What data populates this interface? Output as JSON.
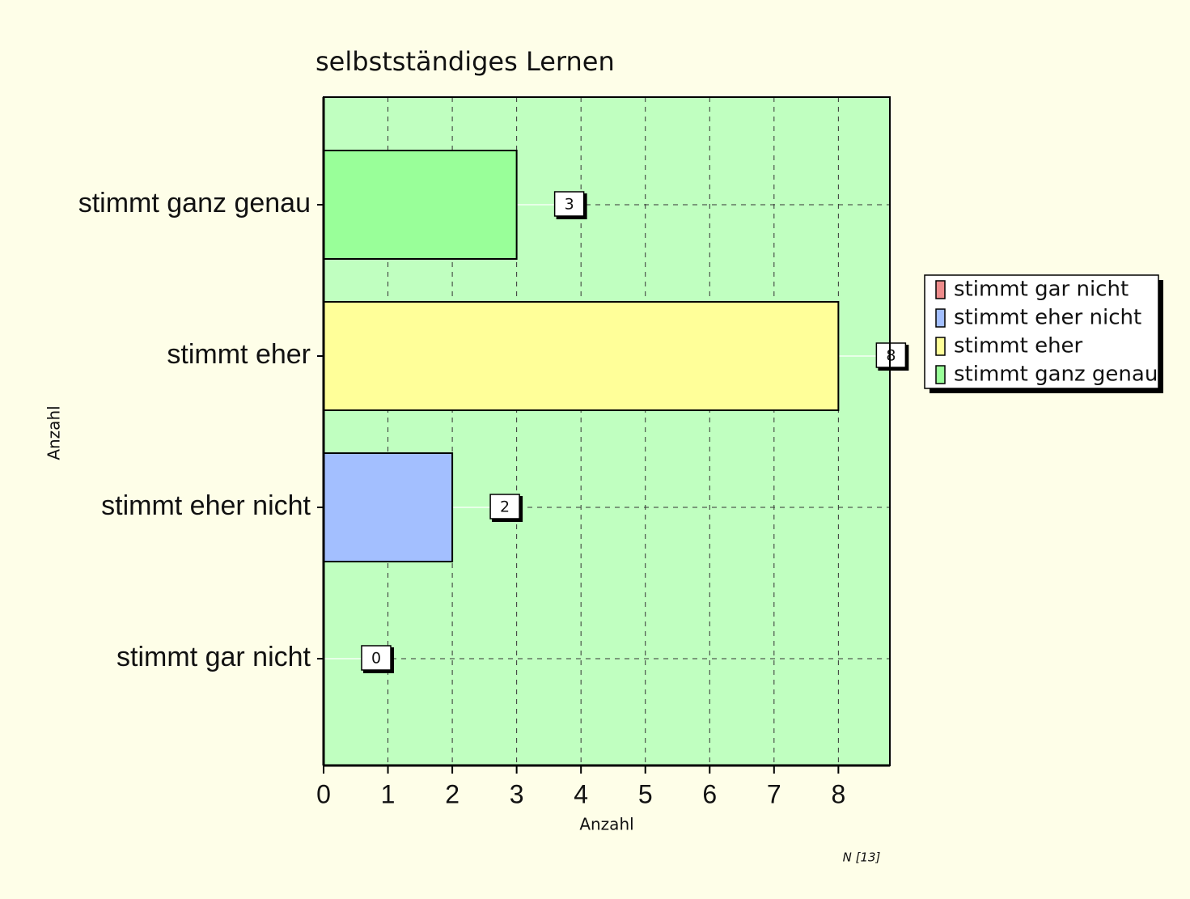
{
  "chart_data": {
    "type": "bar",
    "orientation": "horizontal",
    "title": "selbstständiges Lernen",
    "x_label": "Anzahl",
    "y_label": "Anzahl",
    "note": "N [13]",
    "categories": [
      "stimmt gar nicht",
      "stimmt eher  nicht",
      "stimmt eher",
      "stimmt ganz genau"
    ],
    "values": [
      0,
      2,
      8,
      3
    ],
    "colors": [
      "#ee8c8c",
      "#a3bfff",
      "#ffff99",
      "#99ff99"
    ],
    "xlim": [
      0,
      8.8
    ],
    "xticks": [
      0,
      1,
      2,
      3,
      4,
      5,
      6,
      7,
      8
    ],
    "grid": true,
    "legend": "right"
  }
}
